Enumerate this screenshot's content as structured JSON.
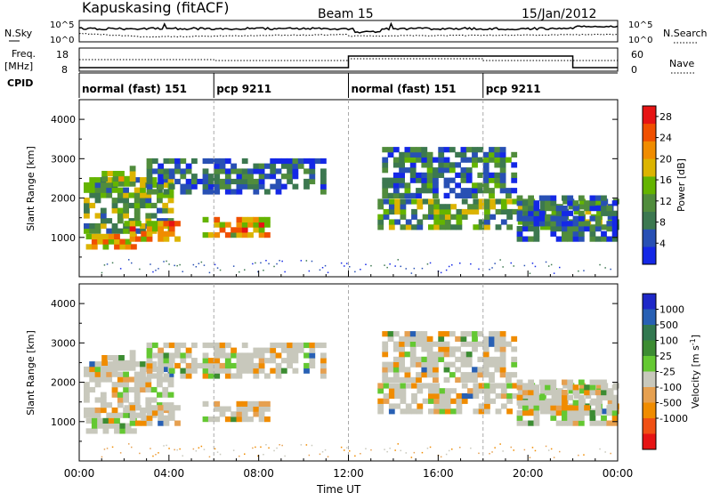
{
  "header": {
    "station": "Kapuskasing (fitACF)",
    "beam": "Beam 15",
    "date": "15/Jan/2012"
  },
  "panels": {
    "nsky": {
      "left_label": "N.Sky",
      "right_label": "N.Search",
      "left_ticks": [
        "10^5",
        "10^0"
      ],
      "right_ticks": [
        "10^5",
        "10^0"
      ]
    },
    "freq": {
      "left_label_1": "Freq.",
      "left_label_2": "[MHz]",
      "left_ticks": [
        "18",
        "8"
      ],
      "right_label": "Nave",
      "right_ticks": [
        "60",
        "0"
      ]
    },
    "cpid": {
      "label": "CPID",
      "segments": [
        {
          "start": "00:00",
          "label": "normal (fast) 151"
        },
        {
          "start": "06:00",
          "label": "pcp 9211"
        },
        {
          "start": "12:00",
          "label": "normal (fast) 151"
        },
        {
          "start": "18:00",
          "label": "pcp 9211"
        }
      ]
    }
  },
  "colors": {
    "power": [
      "#1428e6",
      "#2850b4",
      "#3c7850",
      "#508c3c",
      "#64b400",
      "#dcb400",
      "#f08c00",
      "#f05000",
      "#e61414"
    ],
    "velocity": [
      "#1e28c8",
      "#2860b4",
      "#327850",
      "#3c8c32",
      "#64c832",
      "#c8c8bc",
      "#e6a050",
      "#f08c00",
      "#f05014",
      "#e61414"
    ]
  },
  "chart_data": [
    {
      "type": "heatmap",
      "name": "power",
      "ylabel": "Slant Range [km]",
      "ylim": [
        0,
        4500
      ],
      "yticks": [
        1000,
        2000,
        3000,
        4000
      ],
      "xlim_hours": [
        0,
        24
      ],
      "xticks": [
        "00:00",
        "04:00",
        "08:00",
        "12:00",
        "16:00",
        "20:00",
        "00:00"
      ],
      "colorbar_label": "Power [dB]",
      "colorbar_ticks": [
        "4",
        "8",
        "12",
        "16",
        "20",
        "24",
        "28"
      ],
      "colorbar_range": [
        0,
        30
      ],
      "echo_regions": [
        {
          "t0": 0.2,
          "t1": 4.0,
          "r0": 1100,
          "r1": 2500,
          "level": 12
        },
        {
          "t0": 0.3,
          "t1": 2.5,
          "r0": 700,
          "r1": 1000,
          "level": 20
        },
        {
          "t0": 1.0,
          "t1": 2.5,
          "r0": 2300,
          "r1": 2700,
          "level": 16
        },
        {
          "t0": 2.0,
          "t1": 4.5,
          "r0": 900,
          "r1": 1400,
          "level": 22
        },
        {
          "t0": 5.5,
          "t1": 8.5,
          "r0": 1000,
          "r1": 1500,
          "level": 20
        },
        {
          "t0": 3.0,
          "t1": 11.0,
          "r0": 2100,
          "r1": 2900,
          "level": 6
        },
        {
          "t0": 13.3,
          "t1": 23.9,
          "r0": 1200,
          "r1": 1900,
          "level": 12
        },
        {
          "t0": 13.5,
          "t1": 19.5,
          "r0": 2000,
          "r1": 3200,
          "level": 8
        },
        {
          "t0": 19.5,
          "t1": 23.9,
          "r0": 900,
          "r1": 2000,
          "level": 6
        }
      ]
    },
    {
      "type": "heatmap",
      "name": "velocity",
      "ylabel": "Slant Range [km]",
      "ylim": [
        0,
        4500
      ],
      "yticks": [
        1000,
        2000,
        3000,
        4000
      ],
      "xlim_hours": [
        0,
        24
      ],
      "xlabel": "Time UT",
      "xticks": [
        "00:00",
        "04:00",
        "08:00",
        "12:00",
        "16:00",
        "20:00",
        "00:00"
      ],
      "colorbar_label": "Velocity [m s-1]",
      "colorbar_ticks": [
        "1000",
        "500",
        "100",
        "25",
        "-25",
        "-100",
        "-500",
        "-1000"
      ],
      "colorbar_range": [
        -1000,
        1000
      ]
    }
  ],
  "text": {
    "ylabel": "Slant Range [km]",
    "xlabel": "Time UT",
    "yticks": [
      "1000",
      "2000",
      "3000",
      "4000"
    ],
    "xticks": [
      "00:00",
      "04:00",
      "08:00",
      "12:00",
      "16:00",
      "20:00",
      "00:00"
    ],
    "power_cb_label": "Power [dB]",
    "power_cb_ticks": [
      "28",
      "24",
      "20",
      "16",
      "12",
      "8",
      "4"
    ],
    "vel_cb_label": "Velocity [m s",
    "vel_cb_sup": "-1",
    "vel_cb_close": "]",
    "vel_cb_ticks": [
      "1000",
      "500",
      "100",
      "25",
      "-25",
      "-100",
      "-500",
      "-1000"
    ]
  }
}
